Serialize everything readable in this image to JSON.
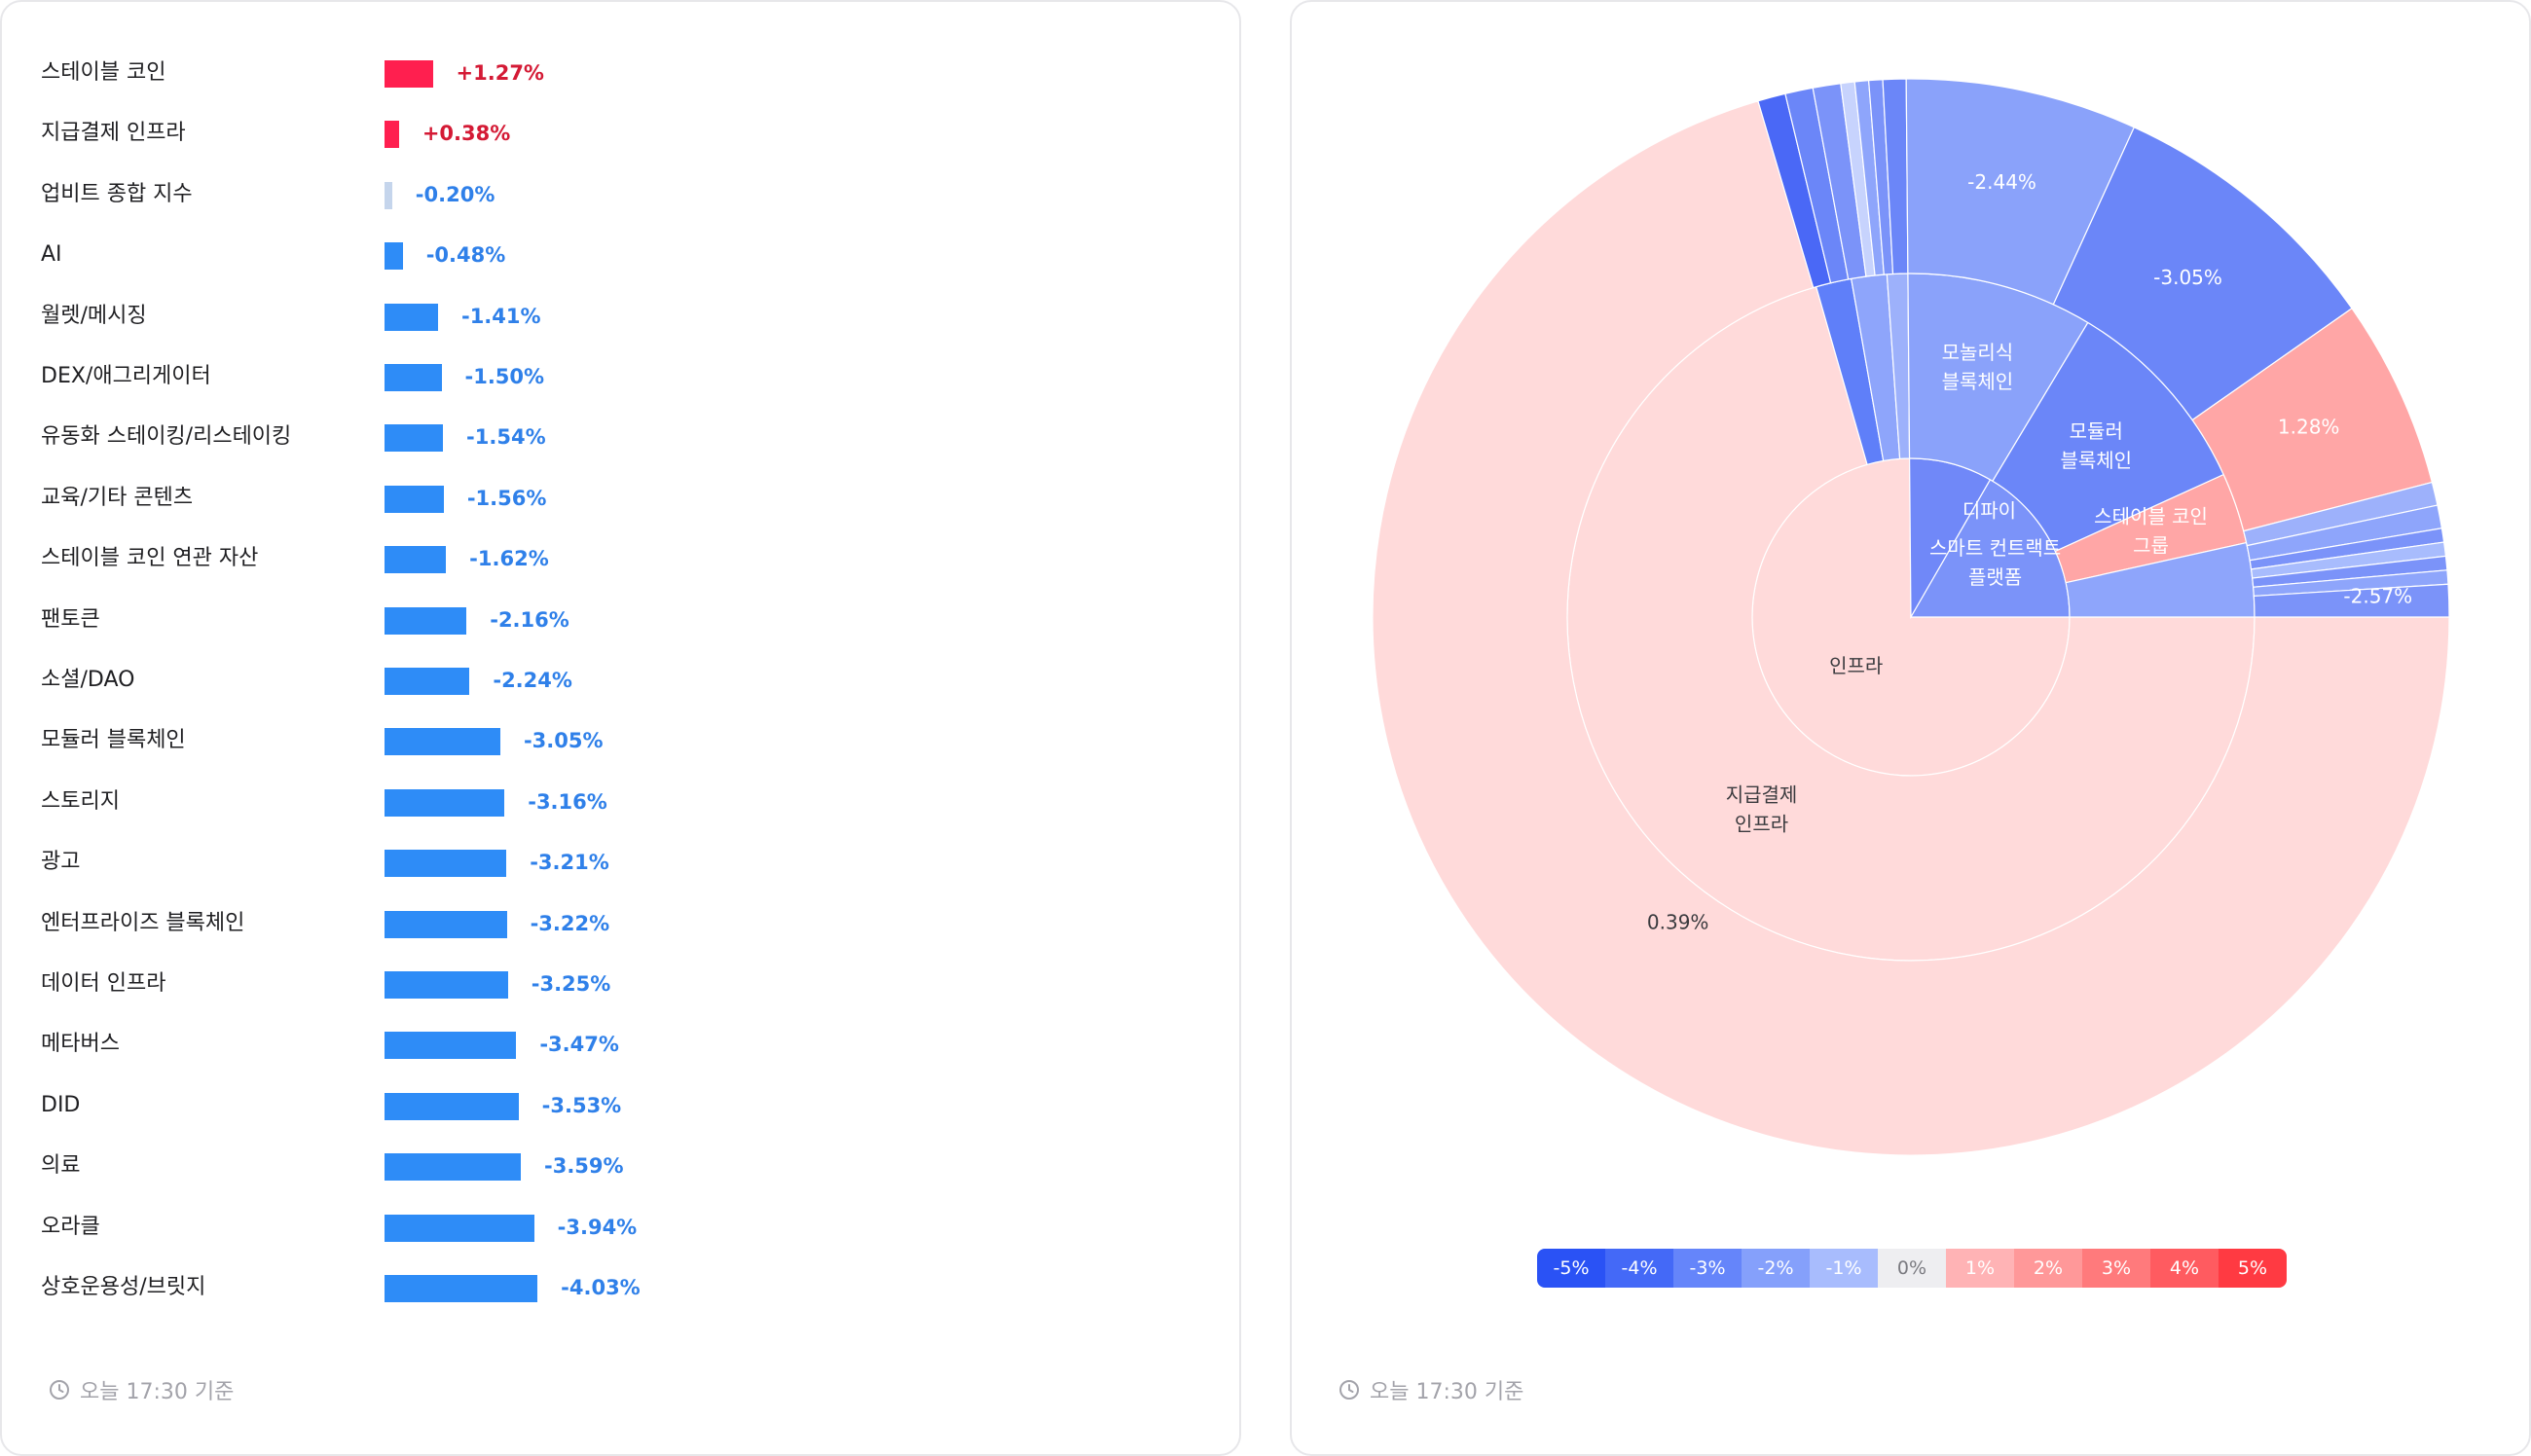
{
  "left_panel": {
    "rows": [
      {
        "label": "스테이블 코인",
        "value": "+1.27%",
        "pct": 1.27
      },
      {
        "label": "지급결제 인프라",
        "value": "+0.38%",
        "pct": 0.38
      },
      {
        "label": "업비트 종합 지수",
        "value": "-0.20%",
        "pct": -0.2
      },
      {
        "label": "AI",
        "value": "-0.48%",
        "pct": -0.48
      },
      {
        "label": "월렛/메시징",
        "value": "-1.41%",
        "pct": -1.41
      },
      {
        "label": "DEX/애그리게이터",
        "value": "-1.50%",
        "pct": -1.5
      },
      {
        "label": "유동화 스테이킹/리스테이킹",
        "value": "-1.54%",
        "pct": -1.54
      },
      {
        "label": "교육/기타 콘텐츠",
        "value": "-1.56%",
        "pct": -1.56
      },
      {
        "label": "스테이블 코인 연관 자산",
        "value": "-1.62%",
        "pct": -1.62
      },
      {
        "label": "팬토큰",
        "value": "-2.16%",
        "pct": -2.16
      },
      {
        "label": "소셜/DAO",
        "value": "-2.24%",
        "pct": -2.24
      },
      {
        "label": "모듈러 블록체인",
        "value": "-3.05%",
        "pct": -3.05
      },
      {
        "label": "스토리지",
        "value": "-3.16%",
        "pct": -3.16
      },
      {
        "label": "광고",
        "value": "-3.21%",
        "pct": -3.21
      },
      {
        "label": "엔터프라이즈 블록체인",
        "value": "-3.22%",
        "pct": -3.22
      },
      {
        "label": "데이터 인프라",
        "value": "-3.25%",
        "pct": -3.25
      },
      {
        "label": "메타버스",
        "value": "-3.47%",
        "pct": -3.47
      },
      {
        "label": "DID",
        "value": "-3.53%",
        "pct": -3.53
      },
      {
        "label": "의료",
        "value": "-3.59%",
        "pct": -3.59
      },
      {
        "label": "오라클",
        "value": "-3.94%",
        "pct": -3.94
      },
      {
        "label": "상호운용성/브릿지",
        "value": "-4.03%",
        "pct": -4.03
      }
    ],
    "footer": "오늘 17:30 기준"
  },
  "right_panel": {
    "footer": "오늘 17:30 기준",
    "legend": [
      "-5%",
      "-4%",
      "-3%",
      "-2%",
      "-1%",
      "0%",
      "1%",
      "2%",
      "3%",
      "4%",
      "5%"
    ],
    "legend_colors": [
      "#2a52f5",
      "#4469f7",
      "#6585fa",
      "#85a0fb",
      "#a8bcfd",
      "#eeeef1",
      "#ffb3b5",
      "#ff9899",
      "#ff7a7c",
      "#ff5b60",
      "#ff3a42"
    ]
  },
  "chart_data": {
    "type": "sunburst",
    "rings": {
      "inner": [
        {
          "label": "인프라",
          "start": 0,
          "end": 269.5,
          "color": "#ffdada"
        },
        {
          "label": "디파이",
          "start": 269.5,
          "end": 300.0,
          "color": "#7088f8"
        },
        {
          "label": "스마트 컨트랙트 플랫폼",
          "start": 300.0,
          "end": 360,
          "color": "#7b93f9"
        }
      ],
      "middle": [
        {
          "label": "지급결제 인프라",
          "start": 0,
          "end": 254.0,
          "color": "#ffdada"
        },
        {
          "label": "",
          "start": 254.0,
          "end": 260.0,
          "color": "#5f7ff9"
        },
        {
          "label": "",
          "start": 260.0,
          "end": 266.0,
          "color": "#8ea5fb"
        },
        {
          "label": "",
          "start": 266.0,
          "end": 269.5,
          "color": "#9db1fb"
        },
        {
          "label": "모놀리식 블록체인",
          "start": 269.5,
          "end": 301.0,
          "color": "#8aa2fa"
        },
        {
          "label": "모듈러 블록체인",
          "start": 301.0,
          "end": 335.5,
          "color": "#6b86f8"
        },
        {
          "label": "스테이블 코인 그룹",
          "start": 335.5,
          "end": 347.5,
          "color": "#ffa6a6"
        },
        {
          "label": "",
          "start": 347.5,
          "end": 360,
          "color": "#8ea5fb"
        }
      ],
      "outer": [
        {
          "label": "0.39%",
          "start": 0,
          "end": 253.5,
          "color": "#ffdada"
        },
        {
          "label": "",
          "start": 253.5,
          "end": 256.5,
          "color": "#4a68f6"
        },
        {
          "label": "",
          "start": 256.5,
          "end": 259.5,
          "color": "#6b86f8"
        },
        {
          "label": "",
          "start": 259.5,
          "end": 262.5,
          "color": "#7b93f9"
        },
        {
          "label": "",
          "start": 262.5,
          "end": 264.0,
          "color": "#c7d3fd"
        },
        {
          "label": "",
          "start": 264.0,
          "end": 265.5,
          "color": "#8ea5fb"
        },
        {
          "label": "",
          "start": 265.5,
          "end": 267.0,
          "color": "#7b93f9"
        },
        {
          "label": "",
          "start": 267.0,
          "end": 269.5,
          "color": "#6b86f8"
        },
        {
          "label": "-2.44%",
          "start": 269.5,
          "end": 294.5,
          "color": "#8aa2fa"
        },
        {
          "label": "-3.05%",
          "start": 294.5,
          "end": 325.0,
          "color": "#6b86f8"
        },
        {
          "label": "1.28%",
          "start": 325.0,
          "end": 345.5,
          "color": "#ffa6a6"
        },
        {
          "label": "",
          "start": 345.5,
          "end": 348.0,
          "color": "#9db1fb"
        },
        {
          "label": "",
          "start": 348.0,
          "end": 350.5,
          "color": "#8ea5fb"
        },
        {
          "label": "",
          "start": 350.5,
          "end": 352.0,
          "color": "#7b93f9"
        },
        {
          "label": "",
          "start": 352.0,
          "end": 353.5,
          "color": "#a8bcfd"
        },
        {
          "label": "",
          "start": 353.5,
          "end": 355.0,
          "color": "#7b93f9"
        },
        {
          "label": "",
          "start": 355.0,
          "end": 356.5,
          "color": "#8ea5fb"
        },
        {
          "label": "-2.57%",
          "start": 356.5,
          "end": 360,
          "color": "#7b93f9"
        }
      ]
    }
  }
}
